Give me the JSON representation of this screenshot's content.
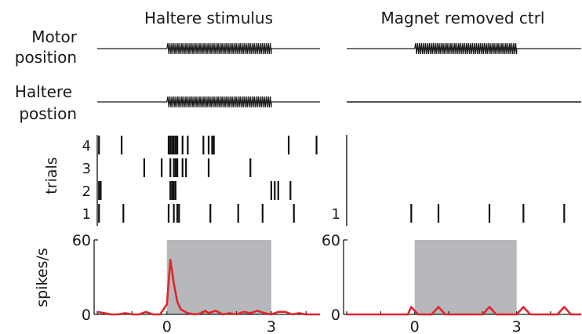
{
  "panels": [
    {
      "title": "Haltere stimulus"
    },
    {
      "title": "Magnet removed ctrl"
    }
  ],
  "row_labels": {
    "motor": [
      "Motor",
      "position"
    ],
    "haltere": [
      "Haltere",
      "postion"
    ],
    "trials": "trials",
    "rate": "spikes/s"
  },
  "colors": {
    "trace": "#1a1a1a",
    "raster": "#111111",
    "psth": "#e0262a",
    "stim_patch": "#b6b8bb",
    "axis": "#1a1a1a"
  },
  "chart_data": [
    {
      "type": "line",
      "panel": "Haltere stimulus",
      "xlim": [
        -2,
        4.4
      ],
      "stimulus": {
        "start": 0,
        "end": 3
      },
      "traces": [
        {
          "name": "Motor position",
          "oscillating": true
        },
        {
          "name": "Haltere postion",
          "oscillating": true
        }
      ],
      "raster": {
        "ylabel": "trials",
        "trial_labels": [
          "4",
          "3",
          "2",
          "1"
        ],
        "trials": [
          {
            "trial": "4",
            "spikes": [
              -1.95,
              -1.3,
              0.05,
              0.1,
              0.15,
              0.2,
              0.25,
              0.3,
              0.45,
              0.6,
              1.05,
              1.2,
              1.3,
              1.35,
              3.5,
              4.3
            ]
          },
          {
            "trial": "3",
            "spikes": [
              -0.65,
              -0.15,
              0.1,
              0.2,
              0.25,
              0.3,
              0.45,
              0.55,
              1.2,
              2.4
            ]
          },
          {
            "trial": "2",
            "spikes": [
              -1.95,
              -1.9,
              0.1,
              0.15,
              0.2,
              0.25,
              3.0,
              3.1,
              3.2,
              3.55
            ]
          },
          {
            "trial": "1",
            "spikes": [
              -1.95,
              -1.25,
              0.05,
              0.2,
              0.3,
              0.35,
              1.25,
              2.05,
              2.75,
              3.65
            ]
          }
        ]
      },
      "rate": {
        "ylabel": "spikes/s",
        "ylim": [
          0,
          60
        ],
        "yticks": [
          0,
          60
        ],
        "xticks": [
          0,
          3
        ],
        "x": [
          -2,
          -1.8,
          -1.6,
          -1.4,
          -1.2,
          -1.0,
          -0.8,
          -0.6,
          -0.4,
          -0.2,
          0,
          0.1,
          0.2,
          0.3,
          0.4,
          0.6,
          0.8,
          1.0,
          1.1,
          1.2,
          1.4,
          1.6,
          1.8,
          2.0,
          2.2,
          2.4,
          2.6,
          2.8,
          3.0,
          3.2,
          3.4,
          3.6,
          3.8,
          4.0,
          4.2,
          4.4
        ],
        "y": [
          2,
          1,
          0,
          0,
          1,
          0,
          0,
          2,
          0,
          0,
          8,
          44,
          25,
          10,
          4,
          1,
          0,
          1,
          3,
          1,
          3,
          0,
          1,
          0,
          2,
          1,
          3,
          1,
          0,
          2,
          2,
          0,
          1,
          0,
          0,
          0
        ]
      }
    },
    {
      "type": "line",
      "panel": "Magnet removed ctrl",
      "xlim": [
        -2,
        4.9
      ],
      "stimulus": {
        "start": 0,
        "end": 3
      },
      "traces": [
        {
          "name": "Motor position",
          "oscillating": true
        },
        {
          "name": "Haltere postion",
          "oscillating": false
        }
      ],
      "raster": {
        "trial_labels": [
          "1"
        ],
        "trials": [
          {
            "trial": "1",
            "spikes": [
              -0.1,
              0.7,
              2.2,
              3.2,
              4.4
            ]
          }
        ]
      },
      "rate": {
        "ylim": [
          0,
          60
        ],
        "yticks": [
          0,
          60
        ],
        "xticks": [
          0,
          3
        ],
        "x": [
          -2,
          -0.4,
          -0.2,
          -0.1,
          0.1,
          0.5,
          0.7,
          0.9,
          2.0,
          2.2,
          2.4,
          3.0,
          3.2,
          3.4,
          4.2,
          4.4,
          4.6,
          4.9
        ],
        "y": [
          0,
          0,
          0,
          6,
          0,
          0,
          6,
          0,
          0,
          6,
          0,
          0,
          6,
          0,
          0,
          6,
          0,
          0
        ]
      }
    }
  ]
}
